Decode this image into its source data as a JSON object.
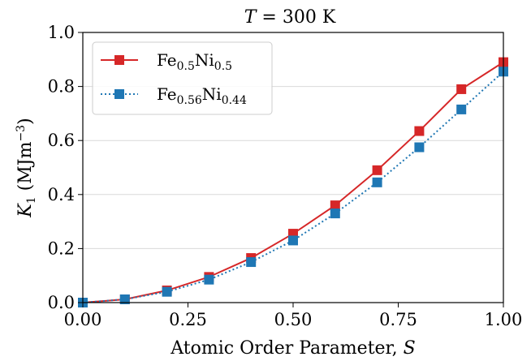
{
  "chart_data": {
    "type": "line",
    "title_prefix": "T",
    "title_value": " = 300 K",
    "xlabel": "Atomic Order Parameter, ",
    "xlabel_symbol": "S",
    "ylabel_symbol": "K",
    "ylabel_symbol_sub": "1",
    "ylabel_units": " (MJm",
    "ylabel_units_sup": "−3",
    "ylabel_units_end": ")",
    "xlim": [
      0.0,
      1.0
    ],
    "ylim": [
      0.0,
      1.0
    ],
    "xticks": [
      "0.00",
      "0.25",
      "0.50",
      "0.75",
      "1.00"
    ],
    "yticks": [
      "0.0",
      "0.2",
      "0.4",
      "0.6",
      "0.8",
      "1.0"
    ],
    "grid": "horizontal",
    "legend_position": "top-left",
    "x": [
      0.0,
      0.1,
      0.2,
      0.3,
      0.4,
      0.5,
      0.6,
      0.7,
      0.8,
      0.9,
      1.0
    ],
    "series": [
      {
        "name_parts": [
          "Fe",
          "0.5",
          "Ni",
          "0.5"
        ],
        "color": "#d62728",
        "line": "solid",
        "values": [
          0.0,
          0.012,
          0.045,
          0.095,
          0.165,
          0.255,
          0.36,
          0.49,
          0.635,
          0.79,
          0.89
        ]
      },
      {
        "name_parts": [
          "Fe",
          "0.56",
          "Ni",
          "0.44"
        ],
        "color": "#1f77b4",
        "line": "dotted",
        "values": [
          0.0,
          0.012,
          0.04,
          0.085,
          0.15,
          0.23,
          0.33,
          0.445,
          0.575,
          0.715,
          0.855
        ]
      }
    ]
  }
}
